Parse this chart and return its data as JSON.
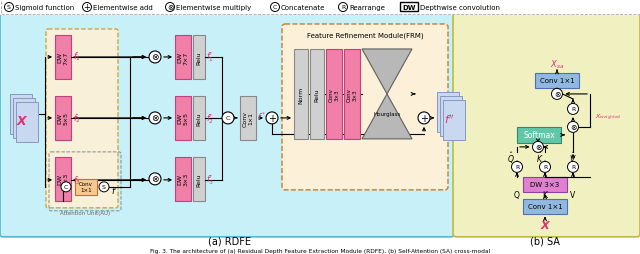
{
  "title": "Fig. 3. The architecture of (a) Residual Depth Feature Extraction Module (RDFE), (b) Self-Attention (SA) cross-modal",
  "rdfe_label": "(a) RDFE",
  "sa_label": "(b) SA",
  "bg_color": "#ffffff",
  "rdfe_bg": "#c8f0f8",
  "sa_bg": "#f0f0c0",
  "pink_box": "#f080a8",
  "orange_box": "#f8c890",
  "gray_box": "#d0d0d0",
  "purple_box": "#e080d0",
  "blue_box": "#90b8e0",
  "green_box": "#60c8a8",
  "hourglass_color": "#c0c0c0",
  "legend_dw_box": "#ffffff"
}
